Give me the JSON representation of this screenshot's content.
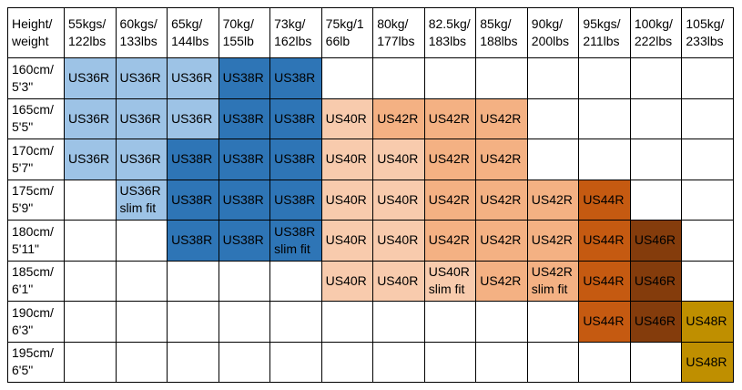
{
  "table": {
    "corner": "Height/\nweight",
    "columns": [
      "55kgs/\n122lbs",
      "60kgs/\n133lbs",
      "65kg/\n144lbs",
      "70kg/\n155lb",
      "73kg/\n162lbs",
      "75kg/1\n66lb",
      "80kg/\n177lbs",
      "82.5kg/\n183lbs",
      "85kg/\n188lbs",
      "90kg/\n200lbs",
      "95kgs/\n211lbs",
      "100kg/\n222lbs",
      "105kg/\n233lbs"
    ],
    "rows": [
      {
        "label": "160cm/\n5'3\"",
        "cells": [
          "US36R",
          "US36R",
          "US36R",
          "US38R",
          "US38R",
          "",
          "",
          "",
          "",
          "",
          "",
          "",
          ""
        ]
      },
      {
        "label": "165cm/\n5'5\"",
        "cells": [
          "US36R",
          "US36R",
          "US36R",
          "US38R",
          "US38R",
          "US40R",
          "US42R",
          "US42R",
          "US42R",
          "",
          "",
          "",
          ""
        ]
      },
      {
        "label": "170cm/\n5'7\"",
        "cells": [
          "US36R",
          "US36R",
          "US38R",
          "US38R",
          "US38R",
          "US40R",
          "US40R",
          "US42R",
          "US42R",
          "",
          "",
          "",
          ""
        ]
      },
      {
        "label": "175cm/\n5'9\"",
        "cells": [
          "",
          "US36R\nslim fit",
          "US38R",
          "US38R",
          "US38R",
          "US40R",
          "US40R",
          "US42R",
          "US42R",
          "US42R",
          "US44R",
          "",
          ""
        ]
      },
      {
        "label": "180cm/\n5'11\"",
        "cells": [
          "",
          "",
          "US38R",
          "US38R",
          "US38R\nslim fit",
          "US40R",
          "US40R",
          "US42R",
          "US42R",
          "US42R",
          "US44R",
          "US46R",
          ""
        ]
      },
      {
        "label": "185cm/\n6'1\"",
        "cells": [
          "",
          "",
          "",
          "",
          "",
          "US40R",
          "US40R",
          "US40R\nslim fit",
          "US42R",
          "US42R\nslim fit",
          "US44R",
          "US46R",
          ""
        ]
      },
      {
        "label": "190cm/\n6'3\"",
        "cells": [
          "",
          "",
          "",
          "",
          "",
          "",
          "",
          "",
          "",
          "",
          "US44R",
          "US46R",
          "US48R"
        ]
      },
      {
        "label": "195cm/\n6'5\"",
        "cells": [
          "",
          "",
          "",
          "",
          "",
          "",
          "",
          "",
          "",
          "",
          "",
          "",
          "US48R"
        ]
      }
    ],
    "size_colors": {
      "US36R": "#9DC3E6",
      "US38R": "#2E75B6",
      "US40R": "#F8CBAD",
      "US42R": "#F4B183",
      "US44R": "#C55A11",
      "US46R": "#843C0C",
      "US48R": "#BF8F00"
    }
  },
  "chart_data": {
    "type": "table",
    "columns": [
      "Height/weight",
      "55kgs/122lbs",
      "60kgs/133lbs",
      "65kg/144lbs",
      "70kg/155lb",
      "73kg/162lbs",
      "75kg/166lb",
      "80kg/177lbs",
      "82.5kg/183lbs",
      "85kg/188lbs",
      "90kg/200lbs",
      "95kgs/211lbs",
      "100kg/222lbs",
      "105kg/233lbs"
    ],
    "rows": [
      [
        "160cm/5'3\"",
        "US36R",
        "US36R",
        "US36R",
        "US38R",
        "US38R",
        "",
        "",
        "",
        "",
        "",
        "",
        "",
        ""
      ],
      [
        "165cm/5'5\"",
        "US36R",
        "US36R",
        "US36R",
        "US38R",
        "US38R",
        "US40R",
        "US42R",
        "US42R",
        "US42R",
        "",
        "",
        "",
        ""
      ],
      [
        "170cm/5'7\"",
        "US36R",
        "US36R",
        "US38R",
        "US38R",
        "US38R",
        "US40R",
        "US40R",
        "US42R",
        "US42R",
        "",
        "",
        "",
        ""
      ],
      [
        "175cm/5'9\"",
        "",
        "US36R slim fit",
        "US38R",
        "US38R",
        "US38R",
        "US40R",
        "US40R",
        "US42R",
        "US42R",
        "US42R",
        "US44R",
        "",
        ""
      ],
      [
        "180cm/5'11\"",
        "",
        "",
        "US38R",
        "US38R",
        "US38R slim fit",
        "US40R",
        "US40R",
        "US42R",
        "US42R",
        "US42R",
        "US44R",
        "US46R",
        ""
      ],
      [
        "185cm/6'1\"",
        "",
        "",
        "",
        "",
        "",
        "US40R",
        "US40R",
        "US40R slim fit",
        "US42R",
        "US42R slim fit",
        "US44R",
        "US46R",
        ""
      ],
      [
        "190cm/6'3\"",
        "",
        "",
        "",
        "",
        "",
        "",
        "",
        "",
        "",
        "",
        "US44R",
        "US46R",
        "US48R"
      ],
      [
        "195cm/6'5\"",
        "",
        "",
        "",
        "",
        "",
        "",
        "",
        "",
        "",
        "",
        "",
        "",
        "US48R"
      ]
    ],
    "legend": {
      "US36R": "#9DC3E6",
      "US38R": "#2E75B6",
      "US40R": "#F8CBAD",
      "US42R": "#F4B183",
      "US44R": "#C55A11",
      "US46R": "#843C0C",
      "US48R": "#BF8F00"
    }
  }
}
